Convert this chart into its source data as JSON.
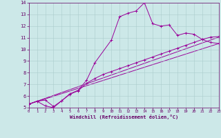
{
  "background_color": "#cce8e8",
  "grid_color": "#aacccc",
  "line_color": "#990099",
  "marker": "+",
  "xlabel": "Windchill (Refroidissement éolien,°C)",
  "xlabel_color": "#660066",
  "tick_color": "#660066",
  "xlim": [
    0,
    23
  ],
  "ylim": [
    5,
    14
  ],
  "xticks": [
    0,
    1,
    2,
    3,
    4,
    5,
    6,
    7,
    8,
    9,
    10,
    11,
    12,
    13,
    14,
    15,
    16,
    17,
    18,
    19,
    20,
    21,
    22,
    23
  ],
  "yticks": [
    5,
    6,
    7,
    8,
    9,
    10,
    11,
    12,
    13,
    14
  ],
  "curve1_x": [
    0,
    1,
    2,
    3,
    4,
    5,
    6,
    7,
    8,
    9,
    10,
    11,
    12,
    13,
    14,
    15,
    16,
    17,
    18,
    19,
    20,
    21,
    22,
    23
  ],
  "curve1_y": [
    5.3,
    5.55,
    5.15,
    5.0,
    5.6,
    6.2,
    6.5,
    7.35,
    8.85,
    null,
    10.8,
    12.8,
    13.1,
    13.3,
    14.0,
    12.2,
    12.0,
    12.1,
    11.2,
    11.4,
    11.3,
    10.85,
    10.6,
    10.5
  ],
  "curve2_x": [
    0,
    1,
    2,
    3,
    4,
    5,
    6,
    7,
    8,
    9,
    10,
    11,
    12,
    13,
    14,
    15,
    16,
    17,
    18,
    19,
    20,
    21,
    22,
    23
  ],
  "curve2_y": [
    5.3,
    5.55,
    5.65,
    5.1,
    5.6,
    6.15,
    6.45,
    7.1,
    7.5,
    7.85,
    8.1,
    8.35,
    8.6,
    8.85,
    9.1,
    9.35,
    9.6,
    9.85,
    10.1,
    10.35,
    10.6,
    10.85,
    11.05,
    11.1
  ],
  "line3_x": [
    0,
    23
  ],
  "line3_y": [
    5.3,
    10.5
  ],
  "line4_x": [
    0,
    23
  ],
  "line4_y": [
    5.3,
    11.05
  ]
}
